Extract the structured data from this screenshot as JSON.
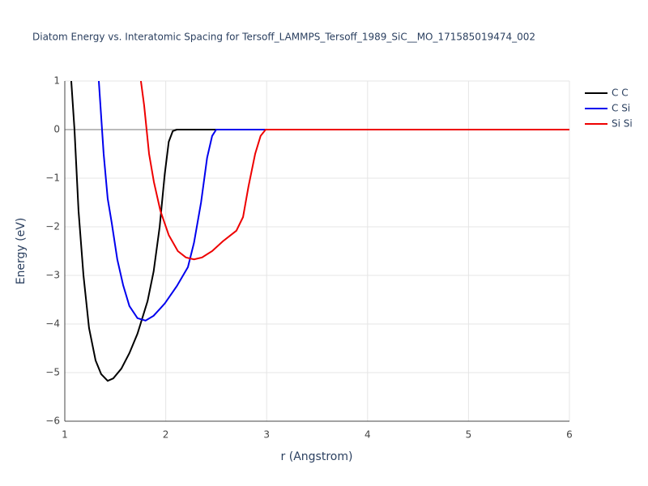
{
  "chart_data": {
    "type": "line",
    "title": "Diatom Energy vs. Interatomic Spacing for Tersoff_LAMMPS_Tersoff_1989_SiC__MO_171585019474_002",
    "x_label": "r (Angstrom)",
    "y_label": "Energy (eV)",
    "xlim": [
      1,
      6
    ],
    "ylim": [
      -6,
      1
    ],
    "xticks": [
      1,
      2,
      3,
      4,
      5,
      6
    ],
    "yticks": [
      1,
      0,
      {
        "value": -1,
        "label": "−1"
      },
      {
        "value": -2,
        "label": "−2"
      },
      {
        "value": -3,
        "label": "−3"
      },
      {
        "value": -4,
        "label": "−4"
      },
      {
        "value": -5,
        "label": "−5"
      },
      {
        "value": -6,
        "label": "−6"
      }
    ],
    "grid": true,
    "legend": "right",
    "series": [
      {
        "name": "C C",
        "color": "#000000",
        "x": [
          1.064,
          1.096,
          1.136,
          1.185,
          1.24,
          1.305,
          1.36,
          1.425,
          1.48,
          1.56,
          1.64,
          1.72,
          1.82,
          1.88,
          1.94,
          1.99,
          2.03,
          2.07,
          2.11,
          6
        ],
        "values": [
          1,
          0,
          -1.67,
          -3,
          -4.08,
          -4.75,
          -5.03,
          -5.17,
          -5.12,
          -4.92,
          -4.6,
          -4.2,
          -3.53,
          -2.92,
          -2.0,
          -0.92,
          -0.25,
          -0.03,
          0,
          0
        ]
      },
      {
        "name": "C Si",
        "color": "#0000ee",
        "x": [
          1.337,
          1.385,
          1.425,
          1.465,
          1.52,
          1.578,
          1.64,
          1.72,
          1.8,
          1.88,
          1.99,
          2.11,
          2.22,
          2.28,
          2.35,
          2.41,
          2.46,
          2.5,
          6
        ],
        "values": [
          1,
          -0.5,
          -1.42,
          -1.92,
          -2.67,
          -3.2,
          -3.63,
          -3.88,
          -3.93,
          -3.83,
          -3.58,
          -3.22,
          -2.83,
          -2.33,
          -1.5,
          -0.58,
          -0.13,
          0,
          0
        ]
      },
      {
        "name": "Si Si",
        "color": "#ee0000",
        "x": [
          1.754,
          1.786,
          1.835,
          1.883,
          1.947,
          2.03,
          2.12,
          2.2,
          2.28,
          2.36,
          2.46,
          2.565,
          2.7,
          2.766,
          2.82,
          2.886,
          2.94,
          2.99,
          6
        ],
        "values": [
          1,
          0.5,
          -0.5,
          -1.08,
          -1.67,
          -2.17,
          -2.5,
          -2.63,
          -2.67,
          -2.63,
          -2.5,
          -2.3,
          -2.08,
          -1.8,
          -1.17,
          -0.5,
          -0.13,
          0,
          0
        ]
      }
    ]
  }
}
